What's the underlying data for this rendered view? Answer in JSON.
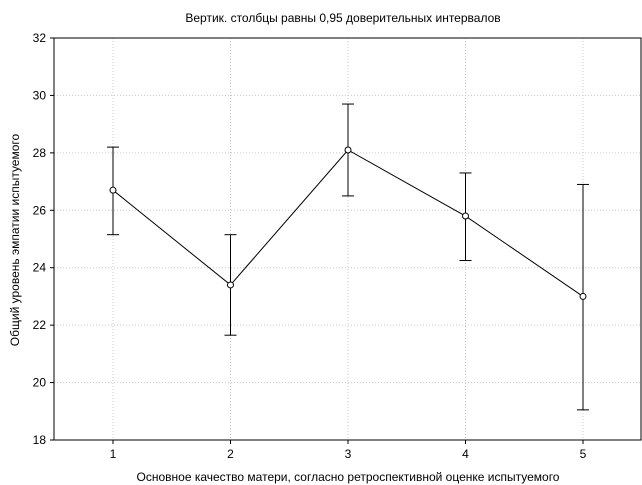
{
  "chart_data": {
    "type": "line",
    "title": "Вертик. столбцы равны 0,95 доверительных интервалов",
    "xlabel": "Основное качество матери, согласно ретроспективной оценке испытуемого",
    "ylabel": "Общий уровень эмпатии испытуемого",
    "categories": [
      "1",
      "2",
      "3",
      "4",
      "5"
    ],
    "series": [
      {
        "values": [
          26.7,
          23.4,
          28.1,
          25.8,
          23.0
        ],
        "ci_lower": [
          25.15,
          21.65,
          26.5,
          24.25,
          19.05
        ],
        "ci_upper": [
          28.2,
          25.15,
          29.7,
          27.3,
          26.9
        ]
      }
    ],
    "ylim": [
      18,
      32
    ],
    "yticks": [
      "18",
      "20",
      "22",
      "24",
      "26",
      "28",
      "30",
      "32"
    ],
    "grid": true,
    "colors": {
      "line": "#000000",
      "marker_fill": "#ffffff",
      "grid": "#c8c8c8"
    }
  }
}
